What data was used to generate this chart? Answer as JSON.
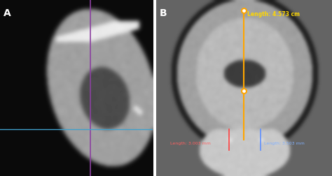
{
  "panel_A_label": "A",
  "panel_B_label": "B",
  "panel_A_bg": "#000000",
  "panel_B_bg": "#808080",
  "line_orange_color": "#FFA500",
  "line_red_color": "#FF4040",
  "line_blue_color": "#6090FF",
  "line_purple_color": "#8B40A0",
  "line_cyan_color": "#40A0CC",
  "label_yellow_color": "#FFD700",
  "label_red_color": "#FF6060",
  "label_blue_color": "#80B0FF",
  "text_orange": "Length: 4.573 cm",
  "text_red": "Length: 3.003 mm",
  "text_blue": "Length: 3.503 mm",
  "label_fontsize": 8,
  "panel_label_fontsize": 10,
  "border_color": "#C8C8C8",
  "fig_bg": "#FFFFFF"
}
